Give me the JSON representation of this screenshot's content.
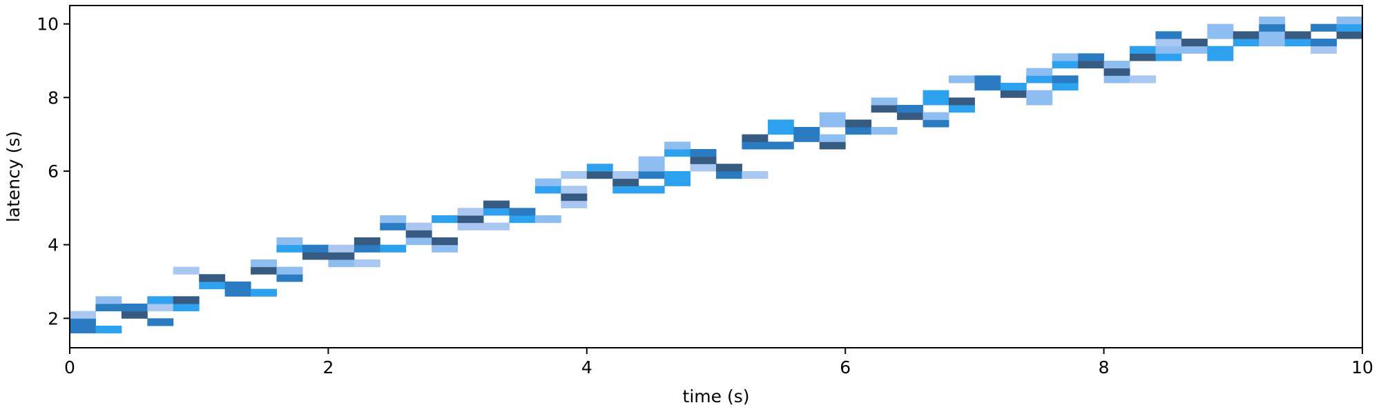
{
  "chart_data": {
    "type": "heatmap",
    "title": "",
    "xlabel": "time (s)",
    "ylabel": "latency (s)",
    "xlim": [
      0,
      10
    ],
    "ylim": [
      1.2,
      10.5
    ],
    "x_ticks": [
      0,
      2,
      4,
      6,
      8,
      10
    ],
    "y_ticks": [
      2,
      4,
      6,
      8,
      10
    ],
    "x_tick_labels": [
      "0",
      "2",
      "4",
      "6",
      "8",
      "10"
    ],
    "y_tick_labels": [
      "2",
      "4",
      "6",
      "8",
      "10"
    ],
    "grid": false,
    "legend": "none",
    "colormap": [
      "#aac7f2",
      "#8ebdf2",
      "#2ea1ee",
      "#2b7bc2",
      "#375a80"
    ],
    "bin_width_x": 0.2,
    "bin_height_y": 0.2,
    "cells": [
      {
        "x": 0.0,
        "y": 1.6,
        "level": 3
      },
      {
        "x": 0.0,
        "y": 1.8,
        "level": 3
      },
      {
        "x": 0.0,
        "y": 2.0,
        "level": 0
      },
      {
        "x": 0.2,
        "y": 1.6,
        "level": 2
      },
      {
        "x": 0.2,
        "y": 2.2,
        "level": 3
      },
      {
        "x": 0.2,
        "y": 2.4,
        "level": 1
      },
      {
        "x": 0.4,
        "y": 2.0,
        "level": 4
      },
      {
        "x": 0.4,
        "y": 2.2,
        "level": 3
      },
      {
        "x": 0.6,
        "y": 1.8,
        "level": 3
      },
      {
        "x": 0.6,
        "y": 2.2,
        "level": 0
      },
      {
        "x": 0.6,
        "y": 2.4,
        "level": 2
      },
      {
        "x": 0.8,
        "y": 2.2,
        "level": 2
      },
      {
        "x": 0.8,
        "y": 2.4,
        "level": 4
      },
      {
        "x": 0.8,
        "y": 3.2,
        "level": 0
      },
      {
        "x": 1.0,
        "y": 2.8,
        "level": 2
      },
      {
        "x": 1.0,
        "y": 3.0,
        "level": 4
      },
      {
        "x": 1.2,
        "y": 2.6,
        "level": 3
      },
      {
        "x": 1.2,
        "y": 2.8,
        "level": 3
      },
      {
        "x": 1.4,
        "y": 2.6,
        "level": 2
      },
      {
        "x": 1.4,
        "y": 3.2,
        "level": 4
      },
      {
        "x": 1.4,
        "y": 3.4,
        "level": 1
      },
      {
        "x": 1.6,
        "y": 3.0,
        "level": 3
      },
      {
        "x": 1.6,
        "y": 3.2,
        "level": 1
      },
      {
        "x": 1.6,
        "y": 3.8,
        "level": 2
      },
      {
        "x": 1.6,
        "y": 4.0,
        "level": 1
      },
      {
        "x": 1.8,
        "y": 3.6,
        "level": 4
      },
      {
        "x": 1.8,
        "y": 3.8,
        "level": 3
      },
      {
        "x": 2.0,
        "y": 3.4,
        "level": 1
      },
      {
        "x": 2.0,
        "y": 3.6,
        "level": 4
      },
      {
        "x": 2.0,
        "y": 3.8,
        "level": 0
      },
      {
        "x": 2.2,
        "y": 3.4,
        "level": 0
      },
      {
        "x": 2.2,
        "y": 3.8,
        "level": 3
      },
      {
        "x": 2.2,
        "y": 4.0,
        "level": 4
      },
      {
        "x": 2.4,
        "y": 3.8,
        "level": 2
      },
      {
        "x": 2.4,
        "y": 4.4,
        "level": 3
      },
      {
        "x": 2.4,
        "y": 4.6,
        "level": 1
      },
      {
        "x": 2.6,
        "y": 4.0,
        "level": 1
      },
      {
        "x": 2.6,
        "y": 4.2,
        "level": 4
      },
      {
        "x": 2.6,
        "y": 4.4,
        "level": 0
      },
      {
        "x": 2.8,
        "y": 3.8,
        "level": 1
      },
      {
        "x": 2.8,
        "y": 4.0,
        "level": 4
      },
      {
        "x": 2.8,
        "y": 4.6,
        "level": 2
      },
      {
        "x": 3.0,
        "y": 4.4,
        "level": 0
      },
      {
        "x": 3.0,
        "y": 4.6,
        "level": 4
      },
      {
        "x": 3.0,
        "y": 4.8,
        "level": 0
      },
      {
        "x": 3.2,
        "y": 4.4,
        "level": 0
      },
      {
        "x": 3.2,
        "y": 4.8,
        "level": 2
      },
      {
        "x": 3.2,
        "y": 5.0,
        "level": 4
      },
      {
        "x": 3.4,
        "y": 4.6,
        "level": 2
      },
      {
        "x": 3.4,
        "y": 4.8,
        "level": 3
      },
      {
        "x": 3.6,
        "y": 4.6,
        "level": 1
      },
      {
        "x": 3.6,
        "y": 5.4,
        "level": 2
      },
      {
        "x": 3.6,
        "y": 5.6,
        "level": 1
      },
      {
        "x": 3.8,
        "y": 5.0,
        "level": 0
      },
      {
        "x": 3.8,
        "y": 5.2,
        "level": 4
      },
      {
        "x": 3.8,
        "y": 5.4,
        "level": 0
      },
      {
        "x": 3.8,
        "y": 5.8,
        "level": 0
      },
      {
        "x": 4.0,
        "y": 5.8,
        "level": 4
      },
      {
        "x": 4.0,
        "y": 6.0,
        "level": 2
      },
      {
        "x": 4.2,
        "y": 5.4,
        "level": 2
      },
      {
        "x": 4.2,
        "y": 5.6,
        "level": 4
      },
      {
        "x": 4.2,
        "y": 5.8,
        "level": 0
      },
      {
        "x": 4.4,
        "y": 5.4,
        "level": 2
      },
      {
        "x": 4.4,
        "y": 5.8,
        "level": 3
      },
      {
        "x": 4.4,
        "y": 6.0,
        "level": 1
      },
      {
        "x": 4.4,
        "y": 6.2,
        "level": 1
      },
      {
        "x": 4.6,
        "y": 5.6,
        "level": 2
      },
      {
        "x": 4.6,
        "y": 5.8,
        "level": 2
      },
      {
        "x": 4.6,
        "y": 6.4,
        "level": 2
      },
      {
        "x": 4.6,
        "y": 6.6,
        "level": 1
      },
      {
        "x": 4.8,
        "y": 6.0,
        "level": 0
      },
      {
        "x": 4.8,
        "y": 6.2,
        "level": 4
      },
      {
        "x": 4.8,
        "y": 6.4,
        "level": 3
      },
      {
        "x": 5.0,
        "y": 5.8,
        "level": 3
      },
      {
        "x": 5.0,
        "y": 6.0,
        "level": 4
      },
      {
        "x": 5.2,
        "y": 5.8,
        "level": 0
      },
      {
        "x": 5.2,
        "y": 6.6,
        "level": 3
      },
      {
        "x": 5.2,
        "y": 6.8,
        "level": 4
      },
      {
        "x": 5.4,
        "y": 6.6,
        "level": 3
      },
      {
        "x": 5.4,
        "y": 7.0,
        "level": 2
      },
      {
        "x": 5.4,
        "y": 7.2,
        "level": 2
      },
      {
        "x": 5.6,
        "y": 6.8,
        "level": 3
      },
      {
        "x": 5.6,
        "y": 7.0,
        "level": 3
      },
      {
        "x": 5.8,
        "y": 6.6,
        "level": 4
      },
      {
        "x": 5.8,
        "y": 6.8,
        "level": 1
      },
      {
        "x": 5.8,
        "y": 7.2,
        "level": 1
      },
      {
        "x": 5.8,
        "y": 7.4,
        "level": 1
      },
      {
        "x": 6.0,
        "y": 7.0,
        "level": 3
      },
      {
        "x": 6.0,
        "y": 7.2,
        "level": 4
      },
      {
        "x": 6.2,
        "y": 7.0,
        "level": 1
      },
      {
        "x": 6.2,
        "y": 7.6,
        "level": 4
      },
      {
        "x": 6.2,
        "y": 7.8,
        "level": 1
      },
      {
        "x": 6.4,
        "y": 7.4,
        "level": 4
      },
      {
        "x": 6.4,
        "y": 7.6,
        "level": 3
      },
      {
        "x": 6.6,
        "y": 7.2,
        "level": 3
      },
      {
        "x": 6.6,
        "y": 7.4,
        "level": 1
      },
      {
        "x": 6.6,
        "y": 7.8,
        "level": 2
      },
      {
        "x": 6.6,
        "y": 8.0,
        "level": 2
      },
      {
        "x": 6.8,
        "y": 7.6,
        "level": 2
      },
      {
        "x": 6.8,
        "y": 7.8,
        "level": 4
      },
      {
        "x": 6.8,
        "y": 8.4,
        "level": 1
      },
      {
        "x": 7.0,
        "y": 8.2,
        "level": 3
      },
      {
        "x": 7.0,
        "y": 8.4,
        "level": 3
      },
      {
        "x": 7.2,
        "y": 8.0,
        "level": 4
      },
      {
        "x": 7.2,
        "y": 8.2,
        "level": 2
      },
      {
        "x": 7.4,
        "y": 7.8,
        "level": 1
      },
      {
        "x": 7.4,
        "y": 8.0,
        "level": 1
      },
      {
        "x": 7.4,
        "y": 8.4,
        "level": 2
      },
      {
        "x": 7.4,
        "y": 8.6,
        "level": 1
      },
      {
        "x": 7.6,
        "y": 8.2,
        "level": 2
      },
      {
        "x": 7.6,
        "y": 8.4,
        "level": 3
      },
      {
        "x": 7.6,
        "y": 8.8,
        "level": 2
      },
      {
        "x": 7.6,
        "y": 9.0,
        "level": 1
      },
      {
        "x": 7.8,
        "y": 8.8,
        "level": 4
      },
      {
        "x": 7.8,
        "y": 9.0,
        "level": 3
      },
      {
        "x": 8.0,
        "y": 8.4,
        "level": 1
      },
      {
        "x": 8.0,
        "y": 8.6,
        "level": 4
      },
      {
        "x": 8.0,
        "y": 8.8,
        "level": 1
      },
      {
        "x": 8.2,
        "y": 8.4,
        "level": 0
      },
      {
        "x": 8.2,
        "y": 9.0,
        "level": 4
      },
      {
        "x": 8.2,
        "y": 9.2,
        "level": 2
      },
      {
        "x": 8.4,
        "y": 9.0,
        "level": 2
      },
      {
        "x": 8.4,
        "y": 9.2,
        "level": 1
      },
      {
        "x": 8.4,
        "y": 9.4,
        "level": 0
      },
      {
        "x": 8.4,
        "y": 9.6,
        "level": 3
      },
      {
        "x": 8.6,
        "y": 9.2,
        "level": 1
      },
      {
        "x": 8.6,
        "y": 9.4,
        "level": 4
      },
      {
        "x": 8.8,
        "y": 9.0,
        "level": 2
      },
      {
        "x": 8.8,
        "y": 9.2,
        "level": 2
      },
      {
        "x": 8.8,
        "y": 9.6,
        "level": 1
      },
      {
        "x": 8.8,
        "y": 9.8,
        "level": 1
      },
      {
        "x": 9.0,
        "y": 9.4,
        "level": 2
      },
      {
        "x": 9.0,
        "y": 9.6,
        "level": 4
      },
      {
        "x": 9.2,
        "y": 9.4,
        "level": 1
      },
      {
        "x": 9.2,
        "y": 9.6,
        "level": 1
      },
      {
        "x": 9.2,
        "y": 9.8,
        "level": 3
      },
      {
        "x": 9.2,
        "y": 10.0,
        "level": 1
      },
      {
        "x": 9.4,
        "y": 9.4,
        "level": 2
      },
      {
        "x": 9.4,
        "y": 9.6,
        "level": 4
      },
      {
        "x": 9.6,
        "y": 9.2,
        "level": 0
      },
      {
        "x": 9.6,
        "y": 9.4,
        "level": 3
      },
      {
        "x": 9.6,
        "y": 9.8,
        "level": 3
      },
      {
        "x": 9.8,
        "y": 9.6,
        "level": 4
      },
      {
        "x": 9.8,
        "y": 9.8,
        "level": 2
      },
      {
        "x": 9.8,
        "y": 10.0,
        "level": 1
      }
    ]
  }
}
